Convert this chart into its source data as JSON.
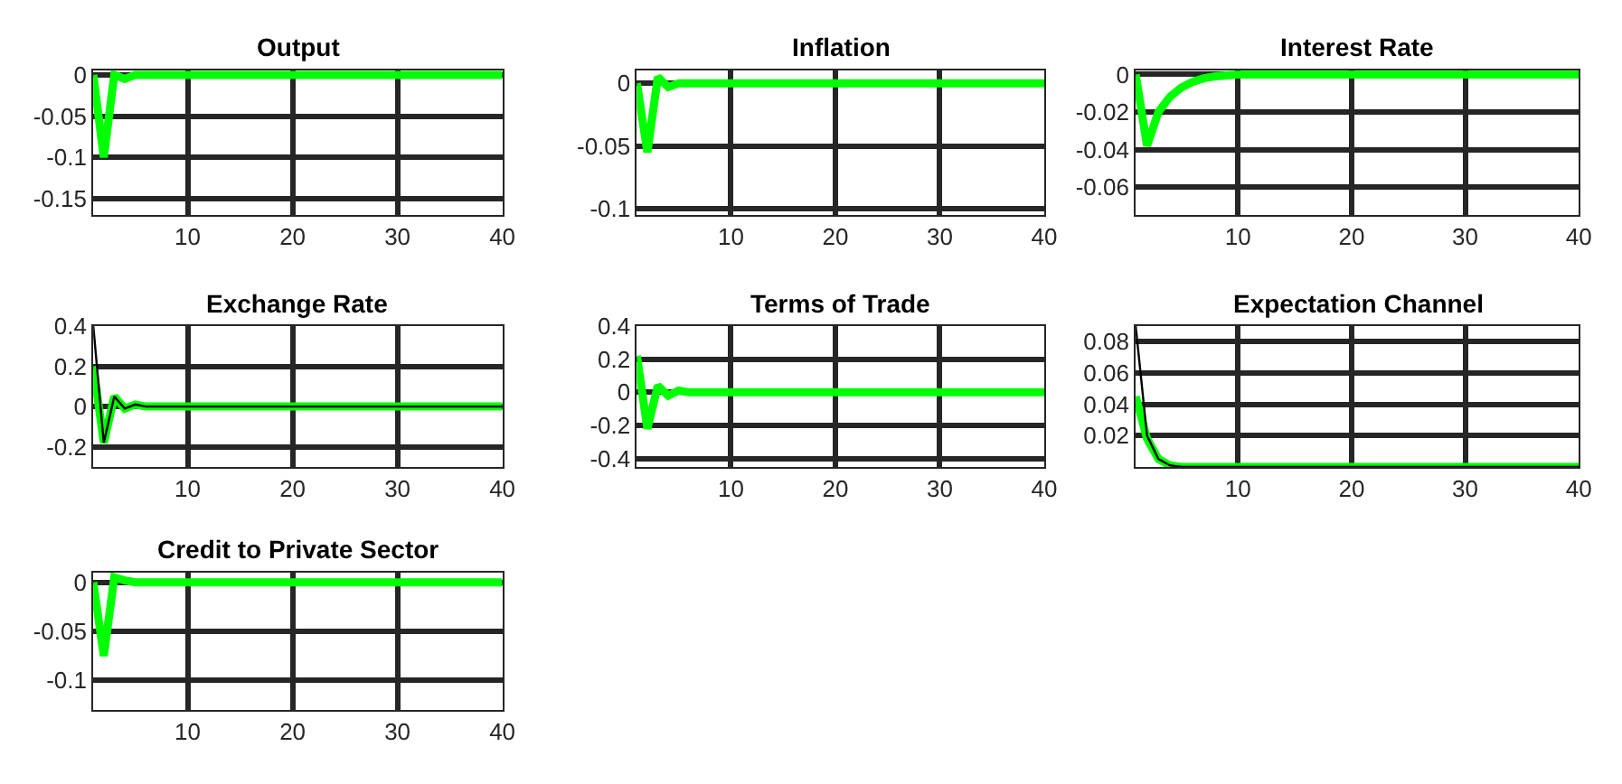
{
  "chart_data": [
    {
      "type": "line",
      "title": "Output",
      "xlim": [
        1,
        40
      ],
      "xticks": [
        10,
        20,
        30,
        40
      ],
      "ylim": [
        -0.17,
        0.005
      ],
      "yticks": [
        -0.15,
        -0.1,
        -0.05,
        0
      ],
      "grid": true,
      "series": [
        {
          "color": "#00ff00",
          "x": [
            1,
            2,
            3,
            4,
            5,
            6,
            40
          ],
          "values": [
            0,
            -0.1,
            0,
            -0.005,
            0,
            0,
            0
          ]
        }
      ]
    },
    {
      "type": "line",
      "title": "Inflation",
      "xlim": [
        1,
        40
      ],
      "xticks": [
        10,
        20,
        30,
        40
      ],
      "ylim": [
        -0.105,
        0.01
      ],
      "yticks": [
        -0.1,
        -0.05,
        0
      ],
      "grid": true,
      "series": [
        {
          "color": "#00ff00",
          "x": [
            1,
            2,
            3,
            4,
            5,
            6,
            40
          ],
          "values": [
            0,
            -0.055,
            0.005,
            -0.003,
            0,
            0,
            0
          ]
        }
      ]
    },
    {
      "type": "line",
      "title": "Interest Rate",
      "xlim": [
        1,
        40
      ],
      "xticks": [
        10,
        20,
        30,
        40
      ],
      "ylim": [
        -0.075,
        0.002
      ],
      "yticks": [
        -0.06,
        -0.04,
        -0.02,
        0
      ],
      "grid": true,
      "series": [
        {
          "color": "#00ff00",
          "x": [
            1,
            2,
            3,
            4,
            5,
            6,
            7,
            8,
            10,
            40
          ],
          "values": [
            0,
            -0.038,
            -0.02,
            -0.012,
            -0.007,
            -0.004,
            -0.002,
            -0.001,
            0,
            0
          ]
        }
      ]
    },
    {
      "type": "line",
      "title": "Exchange Rate",
      "xlim": [
        1,
        40
      ],
      "xticks": [
        10,
        20,
        30,
        40
      ],
      "ylim": [
        -0.3,
        0.4
      ],
      "yticks": [
        -0.2,
        0,
        0.2,
        0.4
      ],
      "grid": true,
      "series": [
        {
          "color": "#00ff00",
          "x": [
            1,
            2,
            3,
            4,
            5,
            6,
            40
          ],
          "values": [
            0.2,
            -0.18,
            0.05,
            -0.01,
            0.01,
            0,
            0
          ]
        },
        {
          "color": "#000000",
          "x": [
            1,
            2,
            3,
            4,
            5,
            6,
            40
          ],
          "values": [
            0.4,
            -0.18,
            0.05,
            -0.01,
            0.01,
            0,
            0
          ]
        }
      ]
    },
    {
      "type": "line",
      "title": "Terms of Trade",
      "xlim": [
        1,
        40
      ],
      "xticks": [
        10,
        20,
        30,
        40
      ],
      "ylim": [
        -0.45,
        0.4
      ],
      "yticks": [
        -0.4,
        -0.2,
        0,
        0.2,
        0.4
      ],
      "grid": true,
      "series": [
        {
          "color": "#00ff00",
          "x": [
            1,
            2,
            3,
            4,
            5,
            6,
            40
          ],
          "values": [
            0.22,
            -0.22,
            0.04,
            -0.02,
            0.01,
            0,
            0
          ]
        }
      ]
    },
    {
      "type": "line",
      "title": "Expectation Channel",
      "xlim": [
        1,
        40
      ],
      "xticks": [
        10,
        20,
        30,
        40
      ],
      "ylim": [
        0,
        0.09
      ],
      "yticks": [
        0.02,
        0.04,
        0.06,
        0.08
      ],
      "grid": true,
      "series": [
        {
          "color": "#00ff00",
          "x": [
            1,
            2,
            3,
            4,
            5,
            40
          ],
          "values": [
            0.045,
            0.018,
            0.005,
            0.001,
            0,
            0
          ]
        },
        {
          "color": "#000000",
          "x": [
            1,
            2,
            3,
            4,
            5,
            40
          ],
          "values": [
            0.09,
            0.02,
            0.005,
            0.001,
            0,
            0
          ]
        }
      ]
    },
    {
      "type": "line",
      "title": "Credit to Private Sector",
      "xlim": [
        1,
        40
      ],
      "xticks": [
        10,
        20,
        30,
        40
      ],
      "ylim": [
        -0.13,
        0.01
      ],
      "yticks": [
        -0.1,
        -0.05,
        0
      ],
      "grid": true,
      "series": [
        {
          "color": "#00ff00",
          "x": [
            1,
            2,
            3,
            4,
            5,
            6,
            40
          ],
          "values": [
            0,
            -0.075,
            0.005,
            0.002,
            0,
            0,
            0
          ]
        }
      ]
    }
  ]
}
